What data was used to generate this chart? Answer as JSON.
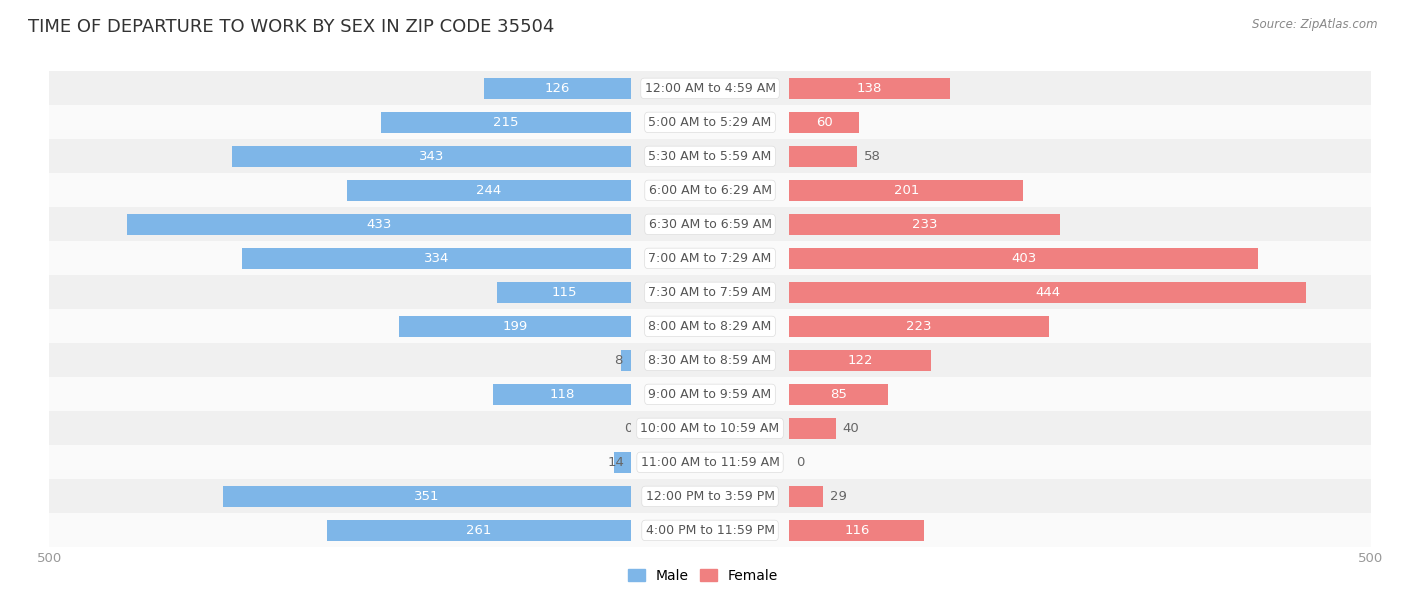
{
  "title": "TIME OF DEPARTURE TO WORK BY SEX IN ZIP CODE 35504",
  "source": "Source: ZipAtlas.com",
  "categories": [
    "12:00 AM to 4:59 AM",
    "5:00 AM to 5:29 AM",
    "5:30 AM to 5:59 AM",
    "6:00 AM to 6:29 AM",
    "6:30 AM to 6:59 AM",
    "7:00 AM to 7:29 AM",
    "7:30 AM to 7:59 AM",
    "8:00 AM to 8:29 AM",
    "8:30 AM to 8:59 AM",
    "9:00 AM to 9:59 AM",
    "10:00 AM to 10:59 AM",
    "11:00 AM to 11:59 AM",
    "12:00 PM to 3:59 PM",
    "4:00 PM to 11:59 PM"
  ],
  "male": [
    126,
    215,
    343,
    244,
    433,
    334,
    115,
    199,
    8,
    118,
    0,
    14,
    351,
    261
  ],
  "female": [
    138,
    60,
    58,
    201,
    233,
    403,
    444,
    223,
    122,
    85,
    40,
    0,
    29,
    116
  ],
  "male_color": "#7EB6E8",
  "female_color": "#F08080",
  "bg_row_light": "#f0f0f0",
  "bg_row_white": "#fafafa",
  "axis_limit": 500,
  "bar_height": 0.62,
  "title_fontsize": 13,
  "label_fontsize": 9.5,
  "tick_fontsize": 9.5,
  "category_fontsize": 9,
  "legend_fontsize": 10,
  "inside_threshold": 60
}
